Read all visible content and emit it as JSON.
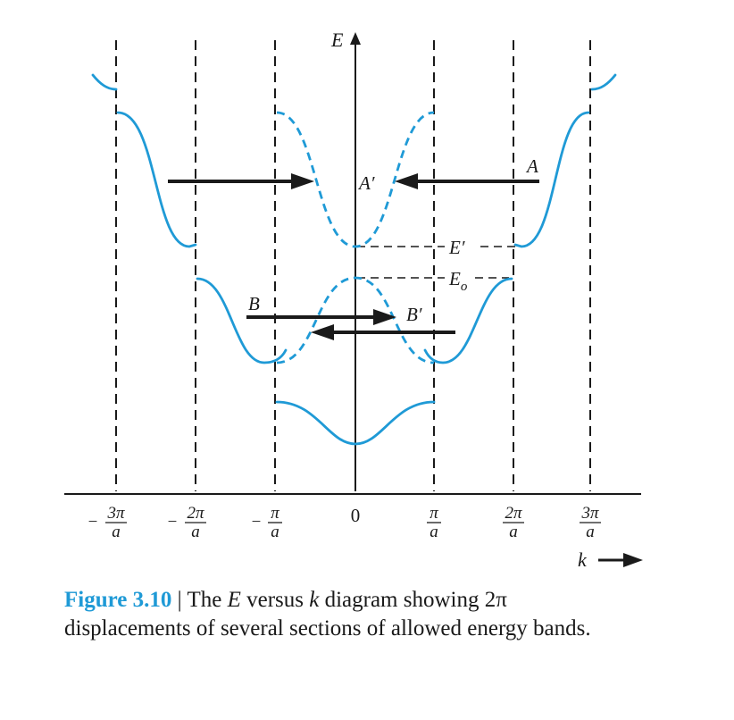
{
  "axes": {
    "energy_label": "E",
    "k_label": "k",
    "origin_label": "0",
    "tick_numerators": [
      "3π",
      "2π",
      "π",
      "π",
      "2π",
      "3π"
    ],
    "tick_denominator": "a",
    "negative_sign": "−"
  },
  "labels": {
    "A": "A",
    "A_prime": "A′",
    "B": "B",
    "B_prime": "B′",
    "E_prime": "E′",
    "E_o": "E",
    "E_o_sub": "o"
  },
  "caption": {
    "figure_label": "Figure 3.10",
    "separator": " | ",
    "part1": "The ",
    "E": "E",
    "part2": " versus ",
    "k": "k",
    "part3": " diagram showing 2π displacements of several sections of allowed energy bands."
  },
  "colors": {
    "band": "#1f9ad6",
    "ink": "#1a1a1a"
  }
}
